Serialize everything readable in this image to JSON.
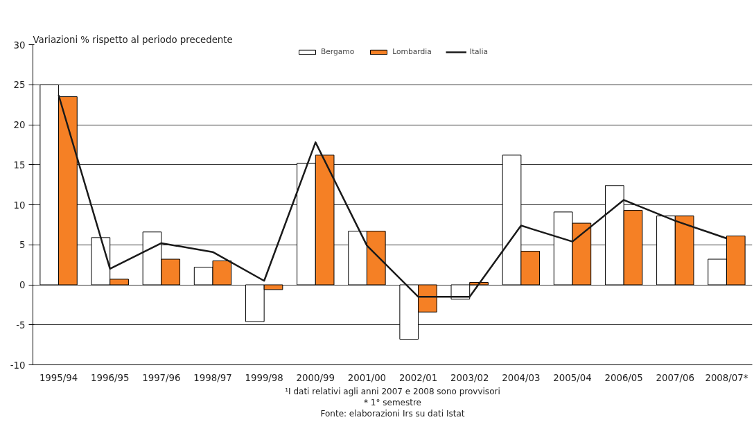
{
  "chart_data": {
    "type": "bar",
    "ylabel": "Variazioni  % rispetto al periodo precedente",
    "categories": [
      "1995/94",
      "1996/95",
      "1997/96",
      "1998/97",
      "1999/98",
      "2000/99",
      "2001/00",
      "2002/01",
      "2003/02",
      "2004/03",
      "2005/04",
      "2006/05",
      "2007/06",
      "2008/07*"
    ],
    "series": [
      {
        "name": "Bergamo",
        "color": "#ffffff",
        "values": [
          25.0,
          5.9,
          6.6,
          2.2,
          -4.6,
          15.2,
          6.7,
          -6.8,
          -1.8,
          16.2,
          9.1,
          12.4,
          8.6,
          3.2
        ]
      },
      {
        "name": "Lombardia",
        "color": "#f58025",
        "values": [
          23.5,
          0.7,
          3.2,
          3.0,
          -0.6,
          16.2,
          6.7,
          -3.4,
          0.3,
          4.2,
          7.7,
          9.3,
          8.6,
          6.1
        ]
      },
      {
        "name": "Italia",
        "type": "line",
        "color": "#1a1a1a",
        "values": [
          23.7,
          2.0,
          5.2,
          4.1,
          0.5,
          17.8,
          4.9,
          -1.5,
          -1.5,
          7.4,
          5.4,
          10.6,
          8.0,
          5.8
        ]
      }
    ],
    "ylim": [
      -10,
      30
    ],
    "yticks": [
      -10,
      -5,
      0,
      5,
      10,
      15,
      20,
      25,
      30
    ],
    "grid": "y",
    "legend": "top",
    "marker": "none",
    "line_style": "solid",
    "annotations": [
      "¹I dati relativi agli anni 2007 e 2008 sono provvisori",
      "* 1° semestre",
      "Fonte: elaborazioni Irs su dati Istat"
    ]
  }
}
